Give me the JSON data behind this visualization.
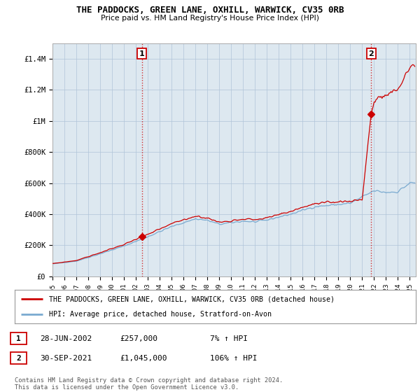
{
  "title": "THE PADDOCKS, GREEN LANE, OXHILL, WARWICK, CV35 0RB",
  "subtitle": "Price paid vs. HM Land Registry's House Price Index (HPI)",
  "ylim": [
    0,
    1500000
  ],
  "yticks": [
    0,
    200000,
    400000,
    600000,
    800000,
    1000000,
    1200000,
    1400000
  ],
  "ytick_labels": [
    "£0",
    "£200K",
    "£400K",
    "£600K",
    "£800K",
    "£1M",
    "£1.2M",
    "£1.4M"
  ],
  "xlim_start": 1995.0,
  "xlim_end": 2025.5,
  "xtick_years": [
    1995,
    1996,
    1997,
    1998,
    1999,
    2000,
    2001,
    2002,
    2003,
    2004,
    2005,
    2006,
    2007,
    2008,
    2009,
    2010,
    2011,
    2012,
    2013,
    2014,
    2015,
    2016,
    2017,
    2018,
    2019,
    2020,
    2021,
    2022,
    2023,
    2024,
    2025
  ],
  "hpi_color": "#7aaad0",
  "price_color": "#cc0000",
  "sale1_x": 2002.5,
  "sale1_y": 257000,
  "sale2_x": 2021.75,
  "sale2_y": 1045000,
  "annotation1_label": "1",
  "annotation2_label": "2",
  "legend_line1": "THE PADDOCKS, GREEN LANE, OXHILL, WARWICK, CV35 0RB (detached house)",
  "legend_line2": "HPI: Average price, detached house, Stratford-on-Avon",
  "table_row1_num": "1",
  "table_row1_date": "28-JUN-2002",
  "table_row1_price": "£257,000",
  "table_row1_hpi": "7% ↑ HPI",
  "table_row2_num": "2",
  "table_row2_date": "30-SEP-2021",
  "table_row2_price": "£1,045,000",
  "table_row2_hpi": "106% ↑ HPI",
  "footnote": "Contains HM Land Registry data © Crown copyright and database right 2024.\nThis data is licensed under the Open Government Licence v3.0.",
  "background_color": "#ffffff",
  "plot_bg_color": "#dde8f0",
  "grid_color": "#b0c4d8"
}
